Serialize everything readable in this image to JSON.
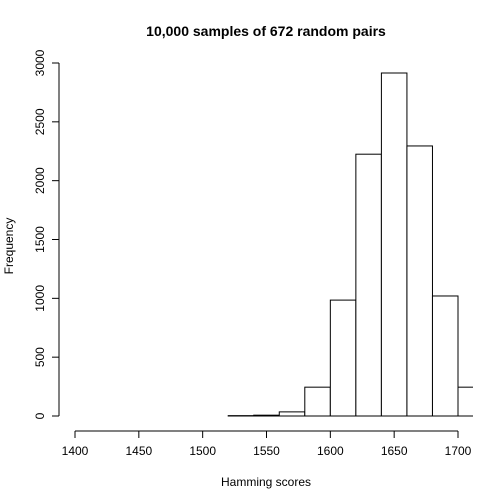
{
  "chart_data": {
    "type": "bar",
    "title": "10,000 samples of 672 random pairs",
    "xlabel": "Hamming scores",
    "ylabel": "Frequency",
    "xlim": [
      1400,
      1710
    ],
    "ylim": [
      0,
      3000
    ],
    "x_ticks": [
      1400,
      1450,
      1500,
      1550,
      1600,
      1650,
      1700
    ],
    "y_ticks": [
      0,
      500,
      1000,
      1500,
      2000,
      2500,
      3000
    ],
    "bins": [
      {
        "start": 1520,
        "end": 1540,
        "count": 3
      },
      {
        "start": 1540,
        "end": 1560,
        "count": 7
      },
      {
        "start": 1560,
        "end": 1580,
        "count": 35
      },
      {
        "start": 1580,
        "end": 1600,
        "count": 245
      },
      {
        "start": 1600,
        "end": 1620,
        "count": 985
      },
      {
        "start": 1620,
        "end": 1640,
        "count": 2225
      },
      {
        "start": 1640,
        "end": 1660,
        "count": 2915
      },
      {
        "start": 1660,
        "end": 1680,
        "count": 2295
      },
      {
        "start": 1680,
        "end": 1700,
        "count": 1020
      },
      {
        "start": 1700,
        "end": 1720,
        "count": 245
      }
    ],
    "bar_fill": "#ffffff",
    "bar_stroke": "#000000",
    "grid": false
  }
}
